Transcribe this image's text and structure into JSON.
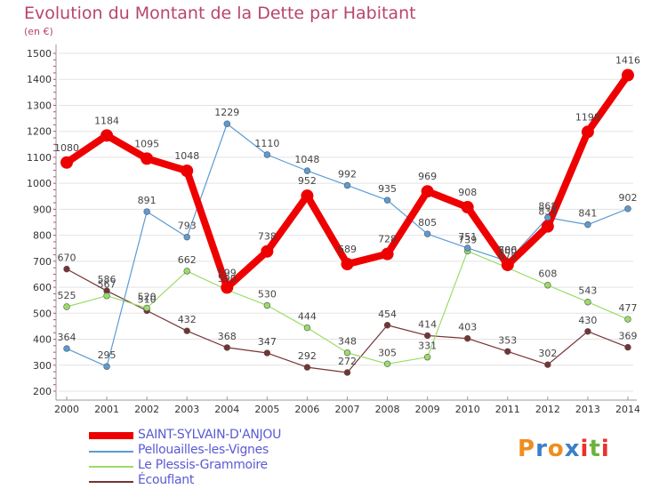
{
  "title": "Evolution du Montant de la Dette par Habitant",
  "subtitle": "(en €)",
  "brand": "Proxiti",
  "brand_colors": [
    "#ef8d1f",
    "#3b7fc9",
    "#ef8d1f",
    "#3b7fc9",
    "#e8322b",
    "#6db33f",
    "#e8322b"
  ],
  "chart_data": {
    "type": "line",
    "title": "Evolution du Montant de la Dette par Habitant",
    "ylabel": "(en €)",
    "xlabel": "",
    "x": [
      "2000",
      "2001",
      "2002",
      "2003",
      "2004",
      "2005",
      "2006",
      "2007",
      "2008",
      "2009",
      "2010",
      "2011",
      "2012",
      "2013",
      "2014"
    ],
    "ylim": [
      200,
      1500
    ],
    "yticks": [
      200,
      300,
      400,
      500,
      600,
      700,
      800,
      900,
      1000,
      1100,
      1200,
      1300,
      1400,
      1500
    ],
    "grid": "horizontal",
    "legend_position": "bottom-left",
    "series": [
      {
        "name": "SAINT-SYLVAIN-D'ANJOU",
        "color": "#ee0000",
        "emphasis": "thick",
        "values": [
          1080,
          1184,
          1095,
          1048,
          599,
          738,
          952,
          689,
          728,
          969,
          908,
          686,
          834,
          1198,
          1416
        ],
        "labels": [
          "1080",
          "1184",
          "1095",
          "1048",
          "599",
          "738",
          "952",
          "689",
          "728",
          "969",
          "908",
          "686",
          "834",
          "1198",
          "1416"
        ]
      },
      {
        "name": "Pellouailles-les-Vignes",
        "color": "#5b9bd5",
        "values": [
          364,
          295,
          891,
          793,
          1229,
          1110,
          1048,
          992,
          935,
          805,
          751,
          700,
          868,
          841,
          902
        ],
        "labels": [
          "364",
          "295",
          "891",
          "793",
          "1229",
          "1110",
          "1048",
          "992",
          "935",
          "805",
          "751",
          "700",
          "868",
          "841",
          "902"
        ]
      },
      {
        "name": "Le Plessis-Grammoire",
        "color": "#99dd66",
        "values": [
          525,
          567,
          520,
          662,
          590,
          530,
          444,
          348,
          305,
          331,
          739,
          675,
          608,
          543,
          477
        ],
        "labels": [
          "525",
          "567",
          "520",
          "662",
          "590",
          "530",
          "444",
          "348",
          "305",
          "331",
          "739",
          "675",
          "608",
          "543",
          "477"
        ]
      },
      {
        "name": "Écouflant",
        "color": "#773333",
        "values": [
          670,
          586,
          510,
          432,
          368,
          347,
          292,
          272,
          454,
          414,
          403,
          353,
          302,
          430,
          369
        ],
        "labels": [
          "670",
          "586",
          "510",
          "432",
          "368",
          "347",
          "292",
          "272",
          "454",
          "414",
          "403",
          "353",
          "302",
          "430",
          "369"
        ]
      }
    ]
  }
}
